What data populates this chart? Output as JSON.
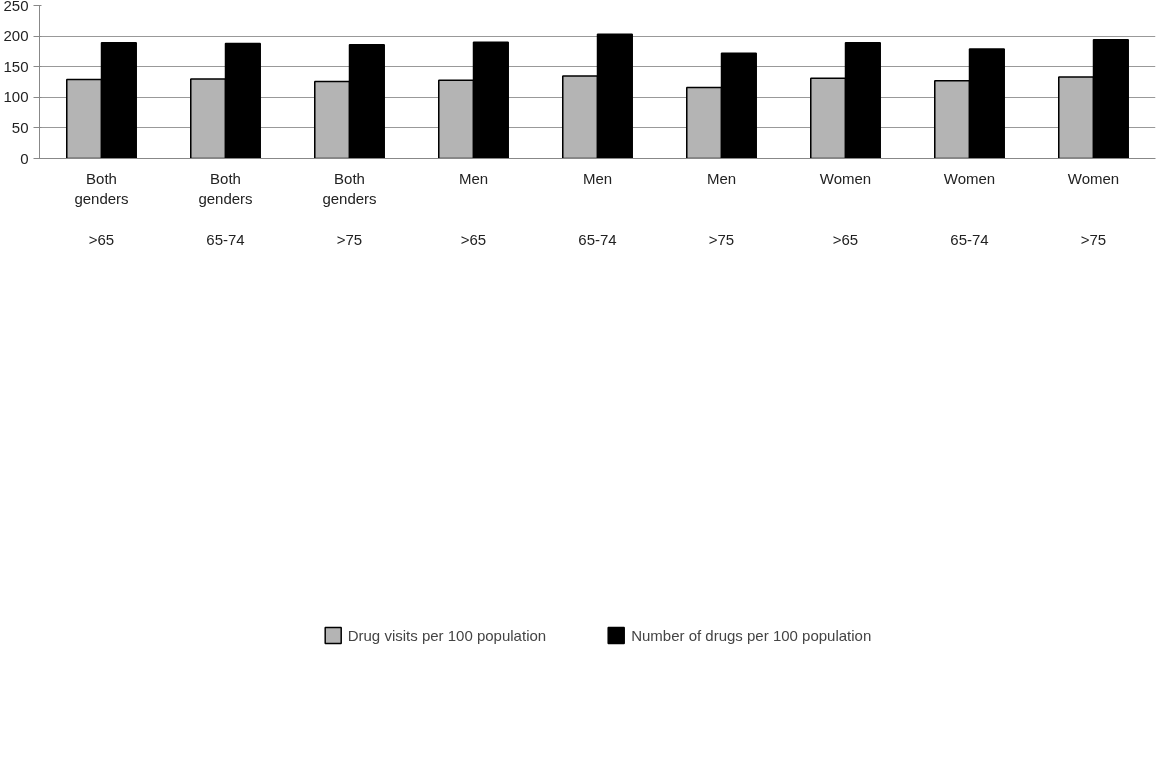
{
  "chart_data": {
    "type": "bar",
    "categories": [
      "Both\ngenders\n\n>65",
      "Both\ngenders\n\n65-74",
      "Both\ngenders\n\n>75",
      "Men\n\n\n>65",
      "Men\n\n\n65-74",
      "Men\n\n\n>75",
      "Women\n\n\n>65",
      "Women\n\n\n65-74",
      "Women\n\n\n>75"
    ],
    "series": [
      {
        "name": "Drug visits per 100 population",
        "color": "#b4b4b4",
        "values": [
          129,
          130,
          126,
          128,
          135,
          116,
          131,
          127,
          133
        ]
      },
      {
        "name": "Number of drugs per 100 population",
        "color": "#000000",
        "values": [
          189,
          188,
          186,
          190,
          203,
          172,
          189,
          179,
          194
        ]
      }
    ],
    "ylim": [
      0,
      250
    ],
    "yticks": [
      0,
      50,
      100,
      150,
      200,
      250
    ],
    "grid": "y",
    "legend": "bottom"
  }
}
